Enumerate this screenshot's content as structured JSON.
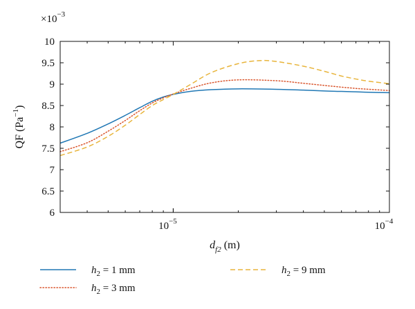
{
  "chart_data": {
    "type": "line",
    "xscale": "log",
    "xlim": [
      3e-06,
      0.0001
    ],
    "ylim": [
      6,
      10
    ],
    "y_multiplier_label": "×10",
    "y_multiplier_exp": "−3",
    "xlabel": {
      "main": "d",
      "sub": "f2",
      "unit": " (m)"
    },
    "ylabel": {
      "main": "QF (Pa",
      "sup": "−1",
      "close": ")"
    },
    "xticks": [
      {
        "value": 1e-05,
        "base": "10",
        "exp": "−5"
      },
      {
        "value": 0.0001,
        "base": "10",
        "exp": "−4"
      }
    ],
    "yticks": [
      {
        "value": 6,
        "label": "6"
      },
      {
        "value": 6.5,
        "label": "6.5"
      },
      {
        "value": 7,
        "label": "7"
      },
      {
        "value": 7.5,
        "label": "7.5"
      },
      {
        "value": 8,
        "label": "8"
      },
      {
        "value": 8.5,
        "label": "8.5"
      },
      {
        "value": 9,
        "label": "9"
      },
      {
        "value": 9.5,
        "label": "9.5"
      },
      {
        "value": 10,
        "label": "10"
      }
    ],
    "grid": false,
    "legend_placement": "below",
    "series": [
      {
        "name": "h2 = 1 mm",
        "label_var": "h",
        "label_sub": "2",
        "label_rest": " = 1 mm",
        "color": "#1f77b4",
        "style": "solid",
        "x": [
          3e-06,
          4e-06,
          5e-06,
          6e-06,
          7e-06,
          8e-06,
          9e-06,
          1e-05,
          1.2e-05,
          1.5e-05,
          2e-05,
          3e-05,
          4e-05,
          5e-05,
          6e-05,
          7e-05,
          8e-05,
          0.0001
        ],
        "y": [
          7.62,
          7.85,
          8.07,
          8.27,
          8.45,
          8.6,
          8.7,
          8.76,
          8.83,
          8.87,
          8.89,
          8.88,
          8.86,
          8.84,
          8.83,
          8.82,
          8.81,
          8.8
        ]
      },
      {
        "name": "h2 = 3 mm",
        "label_var": "h",
        "label_sub": "2",
        "label_rest": " = 3 mm",
        "color": "#d9542b",
        "style": "dotted",
        "x": [
          3e-06,
          4e-06,
          5e-06,
          6e-06,
          7e-06,
          8e-06,
          9e-06,
          1e-05,
          1.2e-05,
          1.5e-05,
          2e-05,
          3e-05,
          4e-05,
          5e-05,
          6e-05,
          7e-05,
          8e-05,
          0.0001
        ],
        "y": [
          7.42,
          7.63,
          7.9,
          8.15,
          8.38,
          8.56,
          8.68,
          8.77,
          8.9,
          9.03,
          9.1,
          9.08,
          9.02,
          8.97,
          8.93,
          8.9,
          8.88,
          8.85
        ]
      },
      {
        "name": "h2 = 9 mm",
        "label_var": "h",
        "label_sub": "2",
        "label_rest": " = 9 mm",
        "color": "#e8b43a",
        "style": "dashed",
        "x": [
          3e-06,
          4e-06,
          5e-06,
          6e-06,
          7e-06,
          8e-06,
          9e-06,
          1e-05,
          1.2e-05,
          1.5e-05,
          2e-05,
          2.5e-05,
          3e-05,
          4e-05,
          5e-05,
          6e-05,
          7e-05,
          8e-05,
          0.0001
        ],
        "y": [
          7.33,
          7.53,
          7.78,
          8.04,
          8.29,
          8.5,
          8.64,
          8.76,
          8.99,
          9.27,
          9.48,
          9.55,
          9.53,
          9.42,
          9.3,
          9.19,
          9.12,
          9.07,
          9.01
        ]
      }
    ]
  }
}
